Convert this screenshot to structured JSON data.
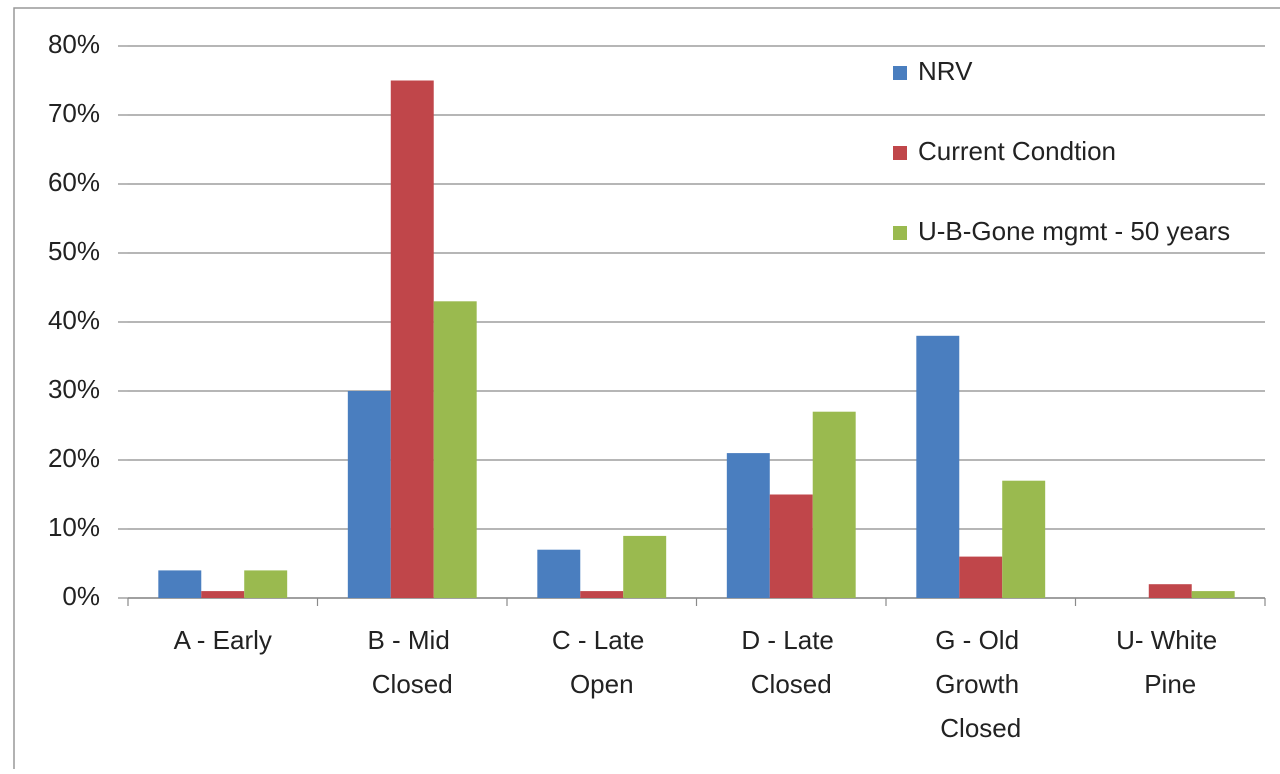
{
  "chart_data": {
    "type": "bar",
    "categories": [
      "A - Early",
      "B - Mid Closed",
      "C - Late Open",
      "D - Late Closed",
      "G - Old Growth Closed",
      "U- White Pine"
    ],
    "series": [
      {
        "name": "NRV",
        "color": "#4a7ebf",
        "values": [
          4,
          30,
          7,
          21,
          38,
          0
        ]
      },
      {
        "name": "Current Condtion",
        "color": "#c0464a",
        "values": [
          1,
          75,
          1,
          15,
          6,
          2
        ]
      },
      {
        "name": "U-B-Gone mgmt - 50 years",
        "color": "#9aba4f",
        "values": [
          4,
          43,
          9,
          27,
          17,
          1
        ]
      }
    ],
    "ylim": [
      0,
      80
    ],
    "yticks": [
      {
        "value": 0,
        "label": "0%"
      },
      {
        "value": 10,
        "label": "10%"
      },
      {
        "value": 20,
        "label": "20%"
      },
      {
        "value": 30,
        "label": "30%"
      },
      {
        "value": 40,
        "label": "40%"
      },
      {
        "value": 50,
        "label": "50%"
      },
      {
        "value": 60,
        "label": "60%"
      },
      {
        "value": 70,
        "label": "70%"
      },
      {
        "value": 80,
        "label": "80%"
      }
    ],
    "grid": true,
    "legend": "top-right"
  }
}
